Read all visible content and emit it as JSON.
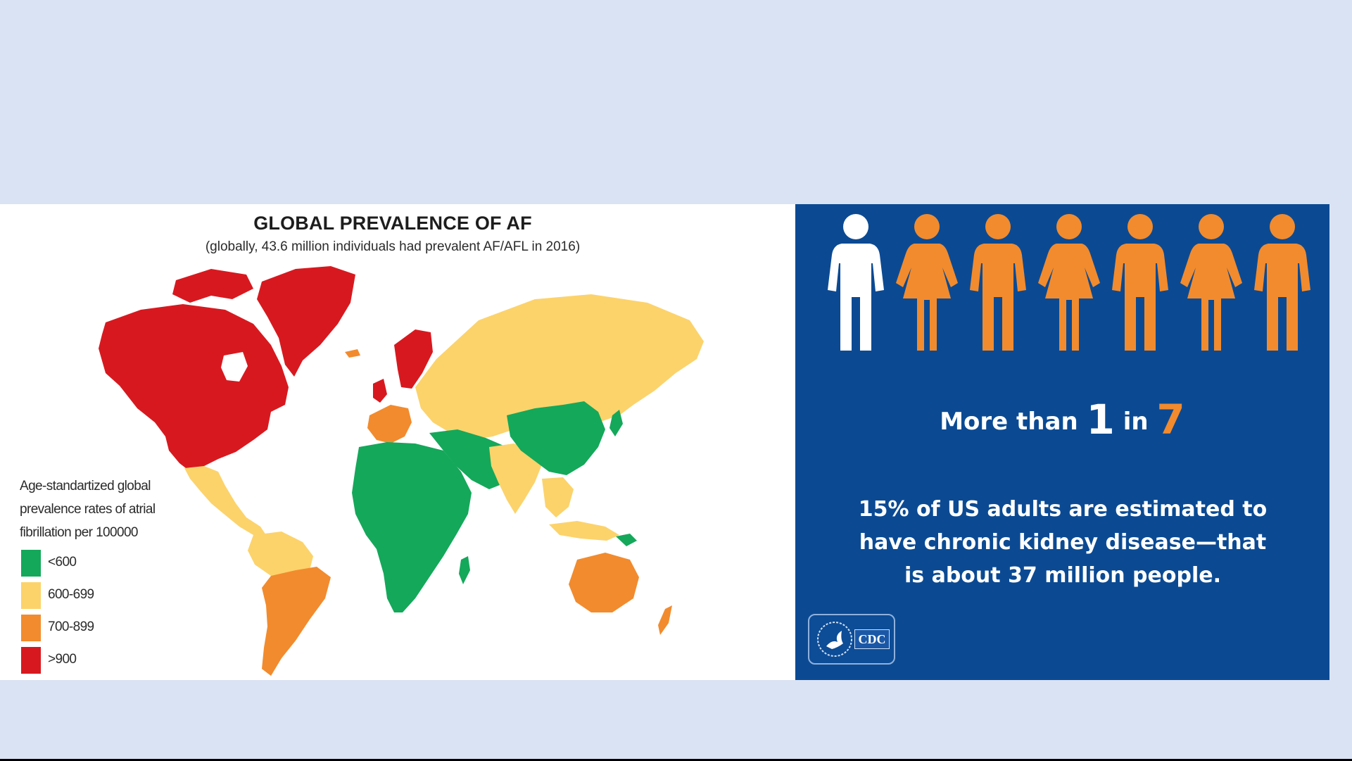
{
  "map": {
    "title": "GLOBAL PREVALENCE OF AF",
    "subtitle": "(globally, 43.6 million individuals had prevalent AF/AFL in 2016)",
    "legend": {
      "title_lines": [
        "Age-standartized global",
        "prevalence rates of atrial",
        "fibrillation per 100000"
      ],
      "items": [
        {
          "label": "<600",
          "color": "#14a85a"
        },
        {
          "label": "600-699",
          "color": "#fcd36b"
        },
        {
          "label": "700-899",
          "color": "#f28b2d"
        },
        {
          "label": ">900",
          "color": "#d7191f"
        }
      ]
    }
  },
  "cdc": {
    "headline_prefix": "More than",
    "headline_num1": "1",
    "headline_mid": "in",
    "headline_num2": "7",
    "body_lines": [
      "15% of US adults are estimated to",
      "have chronic kidney disease—that",
      "is about 37 million people."
    ],
    "logo_text": "CDC",
    "figures": [
      {
        "color": "#ffffff",
        "type": "male"
      },
      {
        "color": "#f28b2d",
        "type": "female"
      },
      {
        "color": "#f28b2d",
        "type": "male"
      },
      {
        "color": "#f28b2d",
        "type": "female"
      },
      {
        "color": "#f28b2d",
        "type": "male"
      },
      {
        "color": "#f28b2d",
        "type": "female"
      },
      {
        "color": "#f28b2d",
        "type": "male"
      }
    ],
    "background_color": "#0b4a93"
  }
}
